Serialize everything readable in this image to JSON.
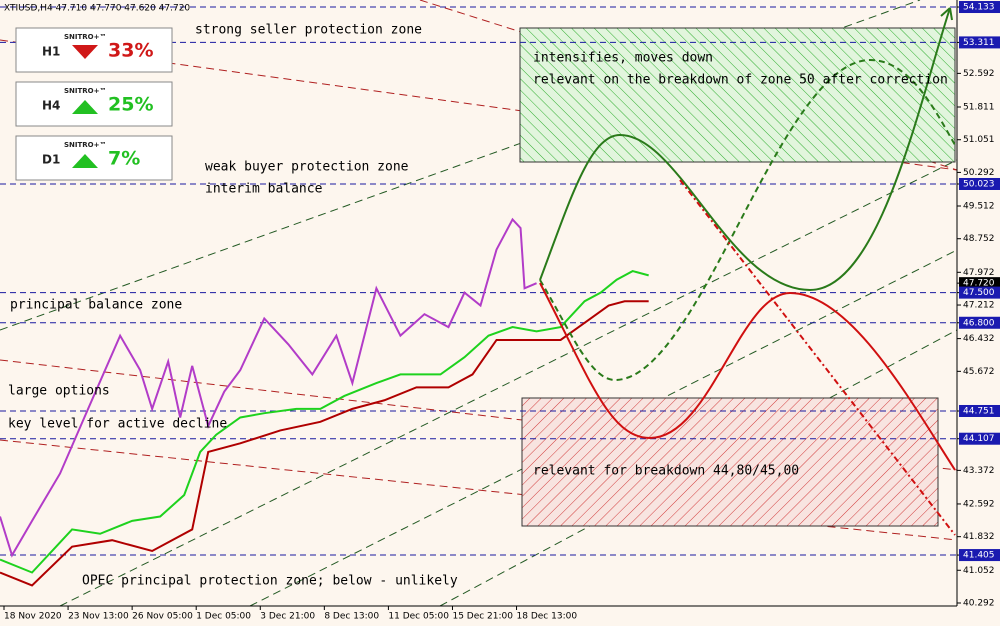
{
  "chart_data": {
    "type": "line",
    "title": "XTIUSD,H4  47.710 47.770 47.620 47.720",
    "xlim": [
      0,
      239
    ],
    "xticks": [
      {
        "value": 1,
        "label": "18 Nov 2020"
      },
      {
        "value": 17,
        "label": "23 Nov 13:00"
      },
      {
        "value": 33,
        "label": "26 Nov 05:00"
      },
      {
        "value": 49,
        "label": "1 Dec 05:00"
      },
      {
        "value": 65,
        "label": "3 Dec 21:00"
      },
      {
        "value": 81,
        "label": "8 Dec 13:00"
      },
      {
        "value": 97,
        "label": "11 Dec 05:00"
      },
      {
        "value": 113,
        "label": "15 Dec 21:00"
      },
      {
        "value": 129,
        "label": "18 Dec 13:00"
      }
    ],
    "ylim": [
      40.222,
      54.296
    ],
    "yticks": [
      54.133,
      53.311,
      52.592,
      51.811,
      51.051,
      50.292,
      50.023,
      49.512,
      48.752,
      47.972,
      {
        "value": 47.72,
        "label": "47.720"
      },
      {
        "value": 47.5,
        "label": "47.500"
      },
      47.212,
      {
        "value": 46.8,
        "label": "46.800"
      },
      46.432,
      45.672,
      44.751,
      44.107,
      43.372,
      42.592,
      41.832,
      41.405,
      41.052,
      40.292
    ],
    "levels": [
      54.133,
      53.311,
      50.023,
      47.5,
      46.8,
      44.751,
      44.107,
      41.405
    ],
    "last_price": 47.72,
    "series": [
      {
        "color": "#b23cc8",
        "x": [
          0,
          3,
          8,
          15,
          22,
          30,
          35,
          38,
          42,
          45,
          48,
          52,
          56,
          60,
          66,
          72,
          78,
          84,
          88,
          94,
          100,
          106,
          112,
          116,
          120,
          124,
          128,
          130,
          131,
          134
        ],
        "values": [
          42.3,
          41.4,
          42.2,
          43.3,
          44.8,
          46.5,
          45.7,
          44.8,
          45.9,
          44.6,
          45.8,
          44.4,
          45.2,
          45.7,
          46.9,
          46.3,
          45.6,
          46.5,
          45.4,
          47.6,
          46.5,
          47.0,
          46.7,
          47.5,
          47.2,
          48.5,
          49.2,
          49.0,
          47.6,
          47.72
        ]
      },
      {
        "color": "#1ed21e",
        "x": [
          0,
          8,
          14,
          18,
          25,
          33,
          40,
          46,
          50,
          54,
          60,
          66,
          74,
          80,
          86,
          94,
          100,
          110,
          116,
          122,
          128,
          134,
          140,
          146,
          150,
          154,
          158,
          162
        ],
        "values": [
          41.3,
          41.0,
          41.6,
          42.0,
          41.9,
          42.2,
          42.3,
          42.8,
          43.8,
          44.2,
          44.6,
          44.7,
          44.8,
          44.8,
          45.1,
          45.4,
          45.6,
          45.6,
          46.0,
          46.5,
          46.7,
          46.6,
          46.7,
          47.3,
          47.5,
          47.8,
          48.0,
          47.9
        ]
      },
      {
        "color": "#b00000",
        "x": [
          0,
          8,
          18,
          28,
          38,
          48,
          52,
          60,
          70,
          80,
          88,
          96,
          104,
          112,
          118,
          124,
          132,
          140,
          146,
          152,
          156,
          162
        ],
        "values": [
          41.0,
          40.7,
          41.6,
          41.75,
          41.5,
          42.0,
          43.8,
          44.0,
          44.3,
          44.5,
          44.8,
          45.0,
          45.3,
          45.3,
          45.6,
          46.4,
          46.4,
          46.4,
          46.8,
          47.2,
          47.3,
          47.3
        ]
      }
    ],
    "annotations": [
      "strong seller protection zone",
      "weak buyer protection zone",
      "interim balance",
      "principal balance zone",
      "large options",
      "key level for active decline",
      "OPEC principal protection zone; below - unlikely",
      "intensifies, moves down",
      "relevant on the breakdown of zone 50 after correction",
      "relevant for breakdown 44,80/45,00"
    ]
  },
  "widgets": [
    {
      "timeframe": "H1",
      "brand": "SNITRO+™",
      "direction": "down",
      "percent": "33%"
    },
    {
      "timeframe": "H4",
      "brand": "SNITRO+™",
      "direction": "up",
      "percent": "25%"
    },
    {
      "timeframe": "D1",
      "brand": "SNITRO+™",
      "direction": "up",
      "percent": "7%"
    }
  ]
}
